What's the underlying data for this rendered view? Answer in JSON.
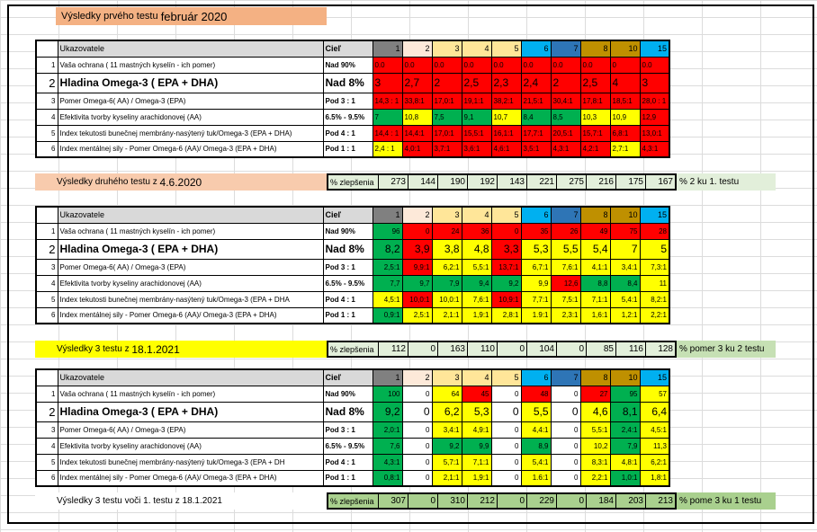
{
  "title_band": {
    "prefix": "Výsledky prvého testu",
    "date": "február 2020"
  },
  "header": {
    "col_label": "Ukazovatele",
    "goal_label": "Cieľ"
  },
  "col_numbers": [
    "1",
    "2",
    "3",
    "4",
    "5",
    "6",
    "7",
    "8",
    "10",
    "15"
  ],
  "col_header_colors": [
    "#808080",
    "#fde9d9",
    "#ffe699",
    "#ffe699",
    "#ffe699",
    "#00b0f0",
    "#2e75b6",
    "#bf9000",
    "#bf9000",
    "#00b0f0"
  ],
  "rows": [
    {
      "n": "1",
      "name": "Vaša ochrana ( 11 mastných kyselín - ich pomer)",
      "goal": "Nad 90%",
      "big": false
    },
    {
      "n": "2",
      "name": "Hladina Omega-3 ( EPA + DHA)",
      "goal": "Nad 8%",
      "big": true
    },
    {
      "n": "3",
      "name": "Pomer Omega-6( AA) / Omega-3 (EPA)",
      "goal": "Pod 3 : 1",
      "big": false
    },
    {
      "n": "4",
      "name": "Efektivita tvorby kyseliny arachidonovej (AA)",
      "goal": "6.5% - 9.5%",
      "big": false
    },
    {
      "n": "5",
      "name": "Index tekutosti bunečnej membrány-nasýtený tuk/Omega-3 (EPA + DHA)",
      "goal": "Pod 4 : 1",
      "big": false
    },
    {
      "n": "6",
      "name": "Index mentálnej sily - Pomer Omega-6 (AA)/ Omega-3 (EPA + DHA)",
      "goal": "Pod 1 : 1",
      "big": false
    }
  ],
  "rows_t2": [
    {
      "n": "1",
      "name": "Vaša ochrana ( 11 mastných kyselín - ich pomer)",
      "goal": "Nad 90%",
      "big": false
    },
    {
      "n": "2",
      "name": "Hladina Omega-3 ( EPA + DHA)",
      "goal": "Nad 8%",
      "big": true
    },
    {
      "n": "3",
      "name": "Pomer Omega-6( AA) / Omega-3 (EPA)",
      "goal": "Pod 3 : 1",
      "big": false
    },
    {
      "n": "4",
      "name": "Efektivita tvorby kyseliny arachidonovej (AA)",
      "goal": "6.5% - 9.5%",
      "big": false
    },
    {
      "n": "5",
      "name": "Index tekutosti bunečnej membrány-nasýtený tuk/Omega-3 (EPA + DHA",
      "goal": "Pod 4 : 1",
      "big": false
    },
    {
      "n": "6",
      "name": "Index mentálnej sily - Pomer Omega-6 (AA)/ Omega-3 (EPA + DHA)",
      "goal": "Pod 1 : 1",
      "big": false
    }
  ],
  "rows_t3": [
    {
      "n": "1",
      "name": "Vaša ochrana ( 11 mastných kyselín - ich pomer)",
      "goal": "Nad 90%",
      "big": false
    },
    {
      "n": "2",
      "name": "Hladina Omega-3 ( EPA + DHA)",
      "goal": "Nad 8%",
      "big": true
    },
    {
      "n": "3",
      "name": "Pomer Omega-6( AA) / Omega-3 (EPA)",
      "goal": "Pod 3 : 1",
      "big": false
    },
    {
      "n": "4",
      "name": "Efektivita tvorby kyseliny arachidonovej (AA)",
      "goal": "6.5% - 9.5%",
      "big": false
    },
    {
      "n": "5",
      "name": "Index tekutosti bunečnej membrány-nasýtený tuk/Omega-3 (EPA + DH",
      "goal": "Pod 4 : 1",
      "big": false
    },
    {
      "n": "6",
      "name": "Index mentálnej sily - Pomer Omega-6 (AA)/ Omega-3 (EPA + DHA)",
      "goal": "Pod 1 : 1",
      "big": false
    }
  ],
  "test1": {
    "values": [
      [
        "0.0",
        "0.0",
        "0.0",
        "0.0",
        "0.0",
        "0.0",
        "0.0",
        "0.0",
        "0",
        "0.0"
      ],
      [
        "3",
        "2,7",
        "2",
        "2,5",
        "2,3",
        "2,4",
        "2",
        "2,5",
        "4",
        "3"
      ],
      [
        "14,3 : 1",
        "33,8:1",
        "17,0:1",
        "19,1:1",
        "38,2:1",
        "21,5:1",
        "30,4:1",
        "17,8:1",
        "18,5:1",
        "28,0 : 1"
      ],
      [
        "7",
        "10,8",
        "7,5",
        "9,1",
        "10,7",
        "8,4",
        "8,5",
        "10,3",
        "10,9",
        "12,9"
      ],
      [
        "14,4 : 1",
        "14,4:1",
        "17,0:1",
        "15,5:1",
        "16,1:1",
        "17,7:1",
        "20,5:1",
        "15,7:1",
        "6,8:1",
        "13,0:1"
      ],
      [
        "2,4 : 1",
        "4,0:1",
        "3,7:1",
        "3,6:1",
        "4,6:1",
        "3,5:1",
        "4,3:1",
        "4,2:1",
        "2,7:1",
        "4,3:1"
      ]
    ],
    "colors": [
      [
        "r",
        "r",
        "r",
        "r",
        "r",
        "r",
        "r",
        "r",
        "r",
        "r"
      ],
      [
        "r",
        "r",
        "r",
        "r",
        "r",
        "r",
        "r",
        "r",
        "r",
        "r"
      ],
      [
        "r",
        "r",
        "r",
        "r",
        "r",
        "r",
        "r",
        "r",
        "r",
        "r"
      ],
      [
        "g",
        "y",
        "g",
        "g",
        "y",
        "g",
        "g",
        "y",
        "y",
        "r"
      ],
      [
        "r",
        "r",
        "r",
        "r",
        "r",
        "r",
        "r",
        "r",
        "r",
        "r"
      ],
      [
        "y",
        "r",
        "r",
        "r",
        "r",
        "r",
        "r",
        "r",
        "y",
        "r"
      ]
    ]
  },
  "summary1": {
    "label": "Výsledky druhého testu z",
    "date": "4.6.2020",
    "pct": "% zlepšenia",
    "values": [
      "273",
      "144",
      "190",
      "192",
      "143",
      "221",
      "275",
      "216",
      "175",
      "167"
    ],
    "note": "% 2 ku 1. testu"
  },
  "test2": {
    "values": [
      [
        "96",
        "0",
        "24",
        "36",
        "0",
        "35",
        "26",
        "49",
        "75",
        "28"
      ],
      [
        "8,2",
        "3,9",
        "3,8",
        "4,8",
        "3,3",
        "5,3",
        "5,5",
        "5,4",
        "7",
        "5"
      ],
      [
        "2,5:1",
        "9,9:1",
        "6,2:1",
        "5,5:1",
        "13,7:1",
        "6,7:1",
        "7,6:1",
        "4,1:1",
        "3,4:1",
        "7,3:1"
      ],
      [
        "7,7",
        "9,7",
        "7,9",
        "9,4",
        "9,2",
        "9,9",
        "12,6",
        "8,8",
        "8,4",
        "11"
      ],
      [
        "4,5:1",
        "10,0:1",
        "10,0:1",
        "7,6:1",
        "10,9:1",
        "7,7:1",
        "7,5:1",
        "7,1:1",
        "5,4:1",
        "8,2:1"
      ],
      [
        "0,9:1",
        "2,5:1",
        "2,1:1",
        "1,9:1",
        "2,8:1",
        "1.9:1",
        "2,3:1",
        "1,6:1",
        "1,2:1",
        "2,2:1"
      ]
    ],
    "colors": [
      [
        "g",
        "r",
        "r",
        "r",
        "r",
        "r",
        "r",
        "r",
        "r",
        "r"
      ],
      [
        "g",
        "r",
        "y",
        "y",
        "r",
        "y",
        "y",
        "y",
        "y",
        "y"
      ],
      [
        "g",
        "r",
        "y",
        "y",
        "r",
        "y",
        "y",
        "y",
        "y",
        "y"
      ],
      [
        "g",
        "g",
        "g",
        "g",
        "g",
        "y",
        "r",
        "g",
        "g",
        "y"
      ],
      [
        "y",
        "r",
        "y",
        "y",
        "r",
        "y",
        "y",
        "y",
        "y",
        "y"
      ],
      [
        "g",
        "y",
        "y",
        "y",
        "y",
        "y",
        "y",
        "y",
        "y",
        "y"
      ]
    ]
  },
  "summary2": {
    "label": "Výsledky 3 testu z",
    "date": "18.1.2021",
    "pct": "% zlepšenia",
    "values": [
      "112",
      "0",
      "163",
      "110",
      "0",
      "104",
      "0",
      "85",
      "116",
      "128"
    ],
    "note": "% pomer 3 ku 2 testu"
  },
  "test3": {
    "values": [
      [
        "100",
        "0",
        "64",
        "45",
        "0",
        "48",
        "0",
        "27",
        "95",
        "57"
      ],
      [
        "9,2",
        "0",
        "6,2",
        "5,3",
        "0",
        "5,5",
        "0",
        "4,6",
        "8,1",
        "6,4"
      ],
      [
        "2,0:1",
        "0",
        "3,4:1",
        "4,9:1",
        "0",
        "4,4:1",
        "0",
        "5,5:1",
        "2,4:1",
        "4,5:1"
      ],
      [
        "7,6",
        "0",
        "9,2",
        "9,9",
        "0",
        "8,9",
        "0",
        "10,2",
        "7,9",
        "11,3"
      ],
      [
        "4,3:1",
        "0",
        "5,7:1",
        "7,1:1",
        "0",
        "5,4:1",
        "0",
        "8,3:1",
        "4,8:1",
        "6,2:1"
      ],
      [
        "0,8:1",
        "0",
        "2,1:1",
        "1,9:1",
        "0",
        "1.6:1",
        "0",
        "2,2:1",
        "1,0:1",
        "1,8:1"
      ]
    ],
    "colors": [
      [
        "g",
        "w",
        "y",
        "r",
        "w",
        "r",
        "w",
        "r",
        "g",
        "y"
      ],
      [
        "g",
        "w",
        "y",
        "y",
        "w",
        "y",
        "w",
        "y",
        "g",
        "y"
      ],
      [
        "g",
        "w",
        "y",
        "y",
        "w",
        "y",
        "w",
        "y",
        "g",
        "y"
      ],
      [
        "g",
        "w",
        "g",
        "g",
        "w",
        "g",
        "w",
        "y",
        "g",
        "y"
      ],
      [
        "g",
        "w",
        "y",
        "y",
        "w",
        "y",
        "w",
        "y",
        "y",
        "y"
      ],
      [
        "g",
        "w",
        "y",
        "y",
        "w",
        "y",
        "w",
        "y",
        "g",
        "y"
      ]
    ]
  },
  "summary3": {
    "label": "Výsledky 3 testu voči 1. testu z 18.1.2021",
    "date": "",
    "pct": "% zlepšenia",
    "values": [
      "307",
      "0",
      "310",
      "212",
      "0",
      "229",
      "0",
      "184",
      "203",
      "213"
    ],
    "note": "% pome 3 ku 1 testu"
  }
}
